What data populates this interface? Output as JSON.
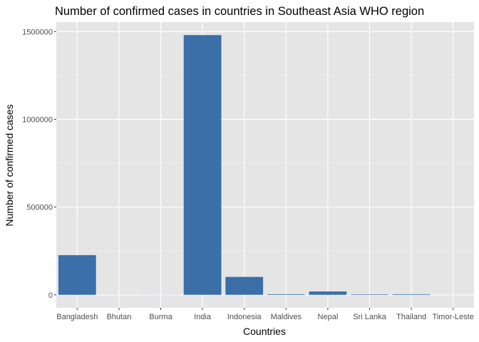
{
  "chart_data": {
    "type": "bar",
    "title": "Number of confirmed cases in countries in Southeast Asia WHO region",
    "xlabel": "Countries",
    "ylabel": "Number of confirmed cases",
    "categories": [
      "Bangladesh",
      "Bhutan",
      "Burma",
      "India",
      "Indonesia",
      "Maldives",
      "Nepal",
      "Sri Lanka",
      "Thailand",
      "Timor-Leste"
    ],
    "values": [
      226000,
      100,
      400,
      1480000,
      102000,
      3500,
      19000,
      2700,
      3300,
      24
    ],
    "ylim": [
      -74000,
      1554000
    ],
    "yticks": [
      0,
      500000,
      1000000,
      1500000
    ],
    "ytick_labels": [
      "0",
      "500000",
      "1000000",
      "1500000"
    ],
    "bar_color": "#3a6fa8",
    "panel_color": "#e5e5e5",
    "grid": true,
    "legend": "none"
  }
}
